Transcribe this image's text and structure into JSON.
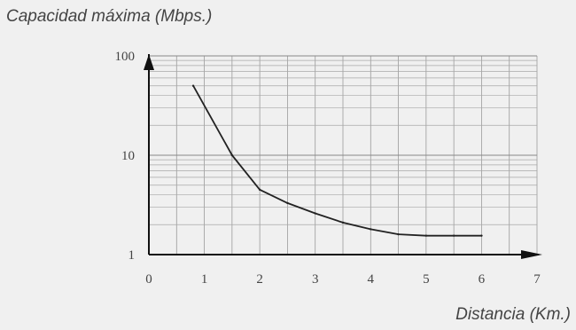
{
  "chart_data": {
    "type": "line",
    "title": "Capacidad máxima (Mbps.)",
    "xlabel": "Distancia (Km.)",
    "ylabel": "",
    "y_scale": "log",
    "xlim": [
      0,
      7
    ],
    "ylim": [
      1,
      100
    ],
    "x_ticks": [
      "0",
      "1",
      "2",
      "3",
      "4",
      "5",
      "6",
      "7"
    ],
    "y_ticks": [
      "1",
      "10",
      "100"
    ],
    "grid": true,
    "series": [
      {
        "x": [
          0.8,
          1.5,
          2.0,
          2.5,
          3.0,
          3.5,
          4.0,
          4.5,
          5.0,
          5.5,
          6.0
        ],
        "values": [
          50,
          10,
          4.5,
          3.3,
          2.6,
          2.1,
          1.8,
          1.6,
          1.55,
          1.55,
          1.55
        ]
      }
    ]
  }
}
